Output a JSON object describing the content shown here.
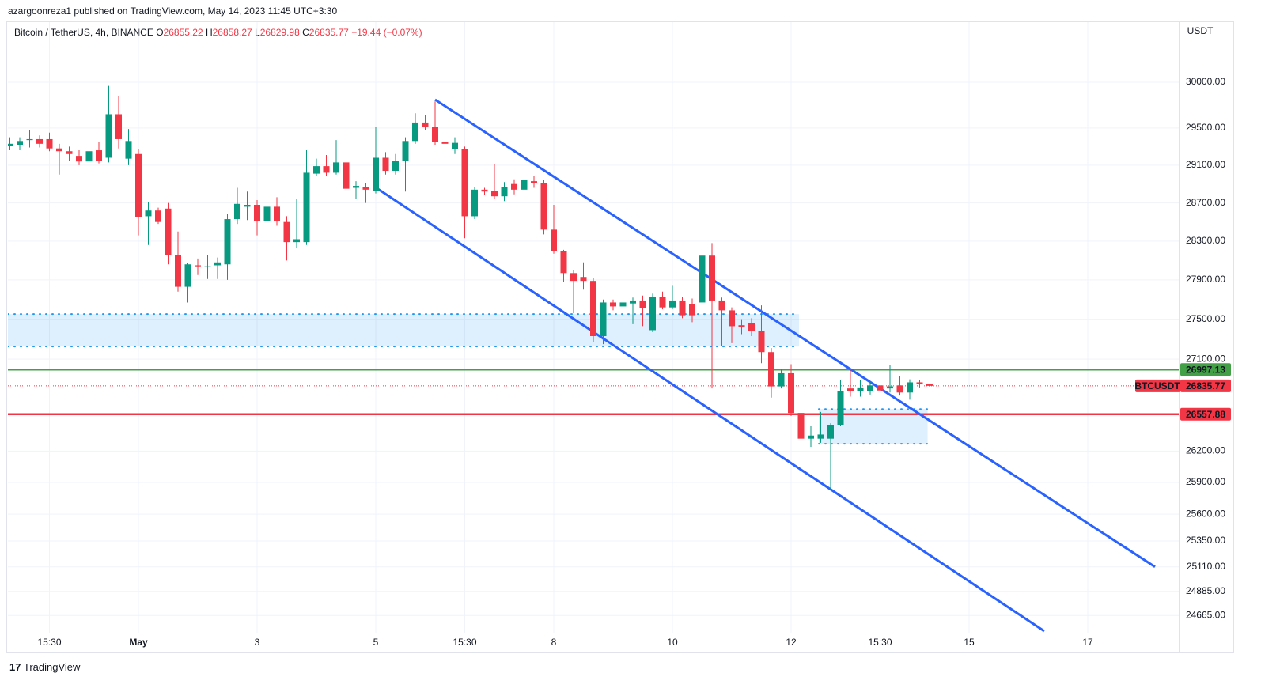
{
  "chart_data": {
    "type": "candlestick",
    "title": "azargoonreza1 published on TradingView.com, May 14, 2023 11:45 UTC+3:30",
    "symbol": "Bitcoin / TetherUS, 4h, BINANCE",
    "ohlc_labels": [
      "O",
      "H",
      "L",
      "C"
    ],
    "change": "−19.44 (−0.07%)",
    "unit": "USDT",
    "symbol_tag": "BTCUSDT",
    "footer": "TradingView",
    "log": true,
    "grid": true,
    "up_color": "#089981",
    "down_color": "#f23645",
    "x": [
      0,
      1,
      2,
      3,
      4,
      5,
      6,
      7,
      8,
      9,
      10,
      11,
      12,
      13,
      14,
      15,
      16,
      17,
      18,
      19,
      20,
      21,
      22,
      23,
      24,
      25,
      26,
      27,
      28,
      29,
      30,
      31,
      32,
      33,
      34,
      35,
      36,
      37,
      38,
      39,
      40,
      41,
      42,
      43,
      44,
      45,
      46,
      47,
      48,
      49,
      50,
      51,
      52,
      53,
      54,
      55,
      56,
      57,
      58,
      59,
      60,
      61,
      62,
      63,
      64,
      65,
      66,
      67,
      68,
      69,
      70,
      71,
      72,
      73,
      74,
      75,
      76,
      77,
      78,
      79,
      80,
      81,
      82,
      83,
      84,
      85,
      86,
      87,
      88,
      89,
      90,
      91,
      92,
      93
    ],
    "open": [
      29310,
      29320,
      29370,
      29380,
      29380,
      29280,
      29250,
      29200,
      29140,
      29260,
      29180,
      29650,
      29170,
      29220,
      28560,
      28620,
      28640,
      28160,
      27830,
      28050,
      28030,
      28050,
      28060,
      28530,
      28660,
      28680,
      28510,
      28660,
      28500,
      28290,
      28290,
      29010,
      29090,
      29020,
      29130,
      28860,
      28870,
      28830,
      29180,
      29040,
      29150,
      29360,
      29560,
      29510,
      29350,
      29270,
      29270,
      28560,
      28840,
      28830,
      28770,
      28900,
      28840,
      28930,
      28910,
      28420,
      28200,
      27970,
      27930,
      27890,
      27330,
      27670,
      27630,
      27660,
      27690,
      27390,
      27730,
      27620,
      27690,
      27650,
      27670,
      28150,
      27690,
      27590,
      27440,
      27460,
      27380,
      27170,
      26830,
      26960,
      26570,
      26320,
      26320,
      26320,
      26450,
      26810,
      26780,
      26780,
      26840,
      26810,
      26840,
      26770,
      26870,
      26855.22
    ],
    "high": [
      29400,
      29400,
      29480,
      29420,
      29450,
      29330,
      29300,
      29260,
      29330,
      29350,
      29960,
      29850,
      29490,
      29270,
      28710,
      28650,
      28700,
      28400,
      28070,
      28120,
      28160,
      28130,
      28580,
      28860,
      28820,
      28730,
      28760,
      28760,
      28560,
      28740,
      29260,
      29170,
      29210,
      29370,
      29220,
      28930,
      28910,
      29510,
      29240,
      29220,
      29400,
      29660,
      29640,
      29790,
      29440,
      29400,
      29300,
      28870,
      28860,
      29110,
      28920,
      28950,
      29080,
      28990,
      28940,
      28680,
      28210,
      28000,
      28080,
      27920,
      27700,
      27700,
      27710,
      27720,
      27740,
      27760,
      27780,
      27840,
      27730,
      27710,
      28250,
      28280,
      27720,
      27620,
      27500,
      27510,
      27640,
      27210,
      27000,
      27050,
      26630,
      26440,
      26580,
      26470,
      26890,
      27000,
      26890,
      26880,
      26910,
      27040,
      26930,
      26900,
      26890,
      26858.27
    ],
    "low": [
      29260,
      29260,
      29290,
      29290,
      29250,
      29000,
      29150,
      29100,
      29080,
      29120,
      29130,
      29280,
      29100,
      28360,
      28260,
      28480,
      28060,
      27780,
      27670,
      27950,
      27910,
      27910,
      27900,
      28480,
      28520,
      28360,
      28420,
      28460,
      28100,
      28230,
      28260,
      28990,
      28990,
      29000,
      28670,
      28740,
      28700,
      28800,
      29000,
      29000,
      28820,
      29330,
      29480,
      29320,
      29250,
      29220,
      28330,
      28530,
      28780,
      28740,
      28720,
      28790,
      28810,
      28860,
      28370,
      28170,
      27880,
      27560,
      27800,
      27270,
      27250,
      27590,
      27450,
      27450,
      27430,
      27370,
      27600,
      27600,
      27510,
      27470,
      27650,
      26810,
      27230,
      27260,
      27350,
      27330,
      27060,
      26720,
      26810,
      26540,
      26130,
      26240,
      26280,
      25830,
      26440,
      26730,
      26730,
      26750,
      26760,
      26770,
      26740,
      26700,
      26820,
      26829.98
    ],
    "close": [
      29330,
      29360,
      29380,
      29330,
      29280,
      29250,
      29220,
      29140,
      29250,
      29150,
      29650,
      29380,
      29360,
      28550,
      28620,
      28500,
      28160,
      27830,
      28060,
      28040,
      28040,
      28080,
      28530,
      28690,
      28680,
      28510,
      28660,
      28510,
      28290,
      28320,
      29020,
      29090,
      29020,
      29130,
      28850,
      28880,
      28840,
      29180,
      29040,
      29150,
      29360,
      29560,
      29510,
      29350,
      29330,
      29340,
      28560,
      28840,
      28820,
      28770,
      28870,
      28840,
      28940,
      28910,
      28420,
      28200,
      27970,
      27890,
      27890,
      27330,
      27670,
      27630,
      27670,
      27690,
      27610,
      27730,
      27620,
      27690,
      27540,
      27540,
      28150,
      27690,
      27590,
      27430,
      27420,
      27380,
      27170,
      26830,
      26960,
      26570,
      26320,
      26350,
      26360,
      26450,
      26780,
      26780,
      26820,
      26840,
      26790,
      26830,
      26770,
      26870,
      26850,
      26835.77
    ],
    "xlim": [
      -0.2,
      118.2
    ],
    "xticks": [
      {
        "value": 4,
        "label": "15:30"
      },
      {
        "value": 13,
        "label": "May"
      },
      {
        "value": 25,
        "label": "3"
      },
      {
        "value": 37,
        "label": "5"
      },
      {
        "value": 46,
        "label": "15:30"
      },
      {
        "value": 55,
        "label": "8"
      },
      {
        "value": 67,
        "label": "10"
      },
      {
        "value": 79,
        "label": "12"
      },
      {
        "value": 88,
        "label": "15:30"
      },
      {
        "value": 97,
        "label": "15"
      },
      {
        "value": 109,
        "label": "17"
      }
    ],
    "ylim": [
      24510,
      30670
    ],
    "yticks": [
      {
        "value": 30000,
        "label": "30000.00"
      },
      {
        "value": 29500,
        "label": "29500.00"
      },
      {
        "value": 29100,
        "label": "29100.00"
      },
      {
        "value": 28700,
        "label": "28700.00"
      },
      {
        "value": 28300,
        "label": "28300.00"
      },
      {
        "value": 27900,
        "label": "27900.00"
      },
      {
        "value": 27500,
        "label": "27500.00"
      },
      {
        "value": 27100,
        "label": "27100.00"
      },
      {
        "value": 26200,
        "label": "26200.00"
      },
      {
        "value": 25900,
        "label": "25900.00"
      },
      {
        "value": 25600,
        "label": "25600.00"
      },
      {
        "value": 25350,
        "label": "25350.00"
      },
      {
        "value": 25110,
        "label": "25110.00"
      },
      {
        "value": 24885,
        "label": "24885.00"
      },
      {
        "value": 24665,
        "label": "24665.00"
      }
    ],
    "hlines": [
      {
        "value": 26997.13,
        "color": "#43a047"
      },
      {
        "value": 26557.88,
        "color": "#f23645"
      }
    ],
    "zones": [
      {
        "x": [
          -0.2,
          79.8
        ],
        "y": [
          27226,
          27552
        ],
        "color": "#2196f3"
      },
      {
        "x": [
          81.8,
          92.8
        ],
        "y": [
          26271,
          26608
        ],
        "color": "#2196f3"
      }
    ],
    "trendlines": [
      {
        "x": [
          43,
          115.8
        ],
        "y": [
          29809,
          25110
        ],
        "color": "#2962ff"
      },
      {
        "x": [
          37,
          104.6
        ],
        "y": [
          28863,
          24524
        ],
        "color": "#2962ff"
      }
    ]
  }
}
